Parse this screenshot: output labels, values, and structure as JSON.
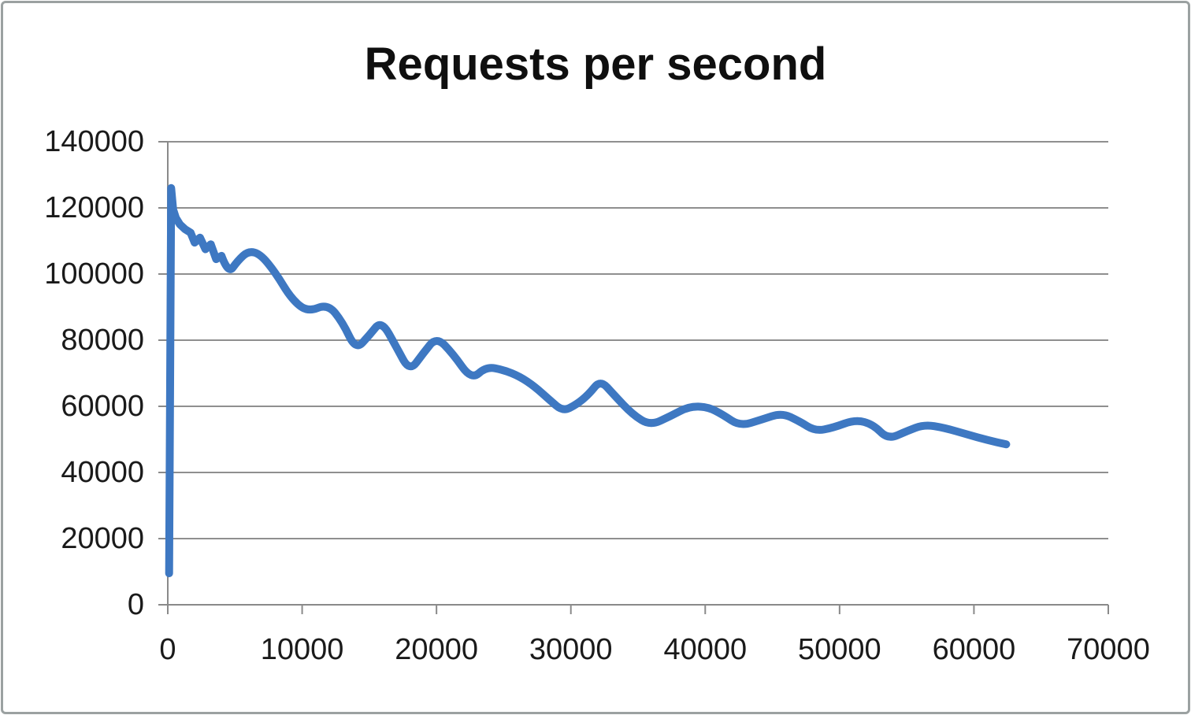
{
  "frame": {
    "border_color": "#9BA1A1",
    "background": "#ffffff"
  },
  "chart_data": {
    "type": "line",
    "title": "Requests per second",
    "xlabel": "",
    "ylabel": "",
    "xlim": [
      0,
      70000
    ],
    "ylim": [
      0,
      140000
    ],
    "x_ticks": [
      0,
      10000,
      20000,
      30000,
      40000,
      50000,
      60000,
      70000
    ],
    "y_ticks": [
      0,
      20000,
      40000,
      60000,
      80000,
      100000,
      120000,
      140000
    ],
    "grid": "horizontal",
    "legend": "none",
    "line_color": "#3E78C2",
    "grid_color": "#8F8F8F",
    "axis_color": "#8A8A8A",
    "text_color": "#1A1A1A",
    "line_width": 10,
    "series": [
      {
        "name": "Requests per second",
        "points": [
          [
            100,
            9500
          ],
          [
            250,
            126000
          ],
          [
            400,
            119500
          ],
          [
            600,
            117000
          ],
          [
            900,
            115000
          ],
          [
            1300,
            113500
          ],
          [
            1700,
            112500
          ],
          [
            2000,
            109500
          ],
          [
            2400,
            111000
          ],
          [
            2800,
            107500
          ],
          [
            3200,
            109000
          ],
          [
            3600,
            104500
          ],
          [
            4000,
            105500
          ],
          [
            4500,
            100000
          ],
          [
            5200,
            104000
          ],
          [
            6000,
            107000
          ],
          [
            6900,
            106000
          ],
          [
            8000,
            100500
          ],
          [
            9200,
            92500
          ],
          [
            10400,
            88500
          ],
          [
            11900,
            91000
          ],
          [
            13000,
            85500
          ],
          [
            14000,
            77000
          ],
          [
            15000,
            81500
          ],
          [
            15900,
            86000
          ],
          [
            17000,
            78000
          ],
          [
            18000,
            70500
          ],
          [
            19000,
            76000
          ],
          [
            20000,
            81000
          ],
          [
            21200,
            76000
          ],
          [
            22600,
            68000
          ],
          [
            23700,
            72000
          ],
          [
            25000,
            71000
          ],
          [
            26200,
            69000
          ],
          [
            27300,
            66000
          ],
          [
            28400,
            62000
          ],
          [
            29400,
            58500
          ],
          [
            30400,
            60500
          ],
          [
            31300,
            63500
          ],
          [
            32200,
            68000
          ],
          [
            33200,
            63500
          ],
          [
            34600,
            57500
          ],
          [
            35900,
            54200
          ],
          [
            37400,
            57000
          ],
          [
            38800,
            60000
          ],
          [
            40200,
            59800
          ],
          [
            41300,
            57500
          ],
          [
            42600,
            54000
          ],
          [
            44200,
            56000
          ],
          [
            45700,
            58000
          ],
          [
            47000,
            55500
          ],
          [
            48200,
            52500
          ],
          [
            49500,
            53500
          ],
          [
            51200,
            56000
          ],
          [
            52500,
            54500
          ],
          [
            53600,
            50000
          ],
          [
            55000,
            52500
          ],
          [
            56300,
            54500
          ],
          [
            57800,
            53500
          ],
          [
            59500,
            51500
          ],
          [
            61000,
            49800
          ],
          [
            62400,
            48500
          ]
        ]
      }
    ]
  }
}
